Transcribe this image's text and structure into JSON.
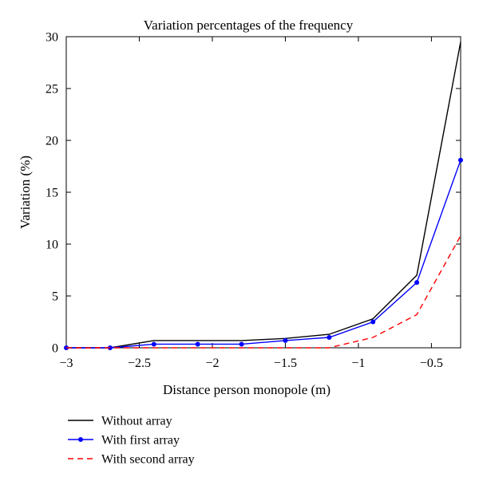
{
  "chart_data": {
    "type": "line",
    "title": "Variation percentages of the frequency",
    "xlabel": "Distance person monopole (m)",
    "ylabel": "Variation (%)",
    "xlim": [
      -3,
      -0.3
    ],
    "ylim": [
      0,
      30
    ],
    "x_ticks": [
      -3,
      -2.5,
      -2,
      -1.5,
      -1,
      -0.5
    ],
    "x_tick_labels": [
      "−3",
      "−2.5",
      "−2",
      "−1.5",
      "−1",
      "−0.5"
    ],
    "y_ticks": [
      0,
      5,
      10,
      15,
      20,
      25,
      30
    ],
    "y_tick_labels": [
      "0",
      "5",
      "10",
      "15",
      "20",
      "25",
      "30"
    ],
    "grid": false,
    "legend_position": "bottom",
    "x": [
      -3,
      -2.7,
      -2.4,
      -2.1,
      -1.8,
      -1.5,
      -1.2,
      -0.9,
      -0.6,
      -0.3
    ],
    "series": [
      {
        "name": "Without array",
        "color": "#000000",
        "style": "solid",
        "marker": "none",
        "values": [
          0,
          0,
          0.7,
          0.7,
          0.7,
          0.9,
          1.3,
          2.8,
          7.0,
          29.5
        ]
      },
      {
        "name": "With first array",
        "color": "#0000ff",
        "style": "solid",
        "marker": "dot",
        "values": [
          0,
          0,
          0.35,
          0.35,
          0.35,
          0.7,
          1.0,
          2.5,
          6.3,
          18.1
        ]
      },
      {
        "name": "With second array",
        "color": "#ff0000",
        "style": "dashed",
        "marker": "none",
        "values": [
          0,
          0,
          0,
          0,
          0,
          0,
          0,
          1.0,
          3.2,
          10.8
        ]
      }
    ]
  }
}
